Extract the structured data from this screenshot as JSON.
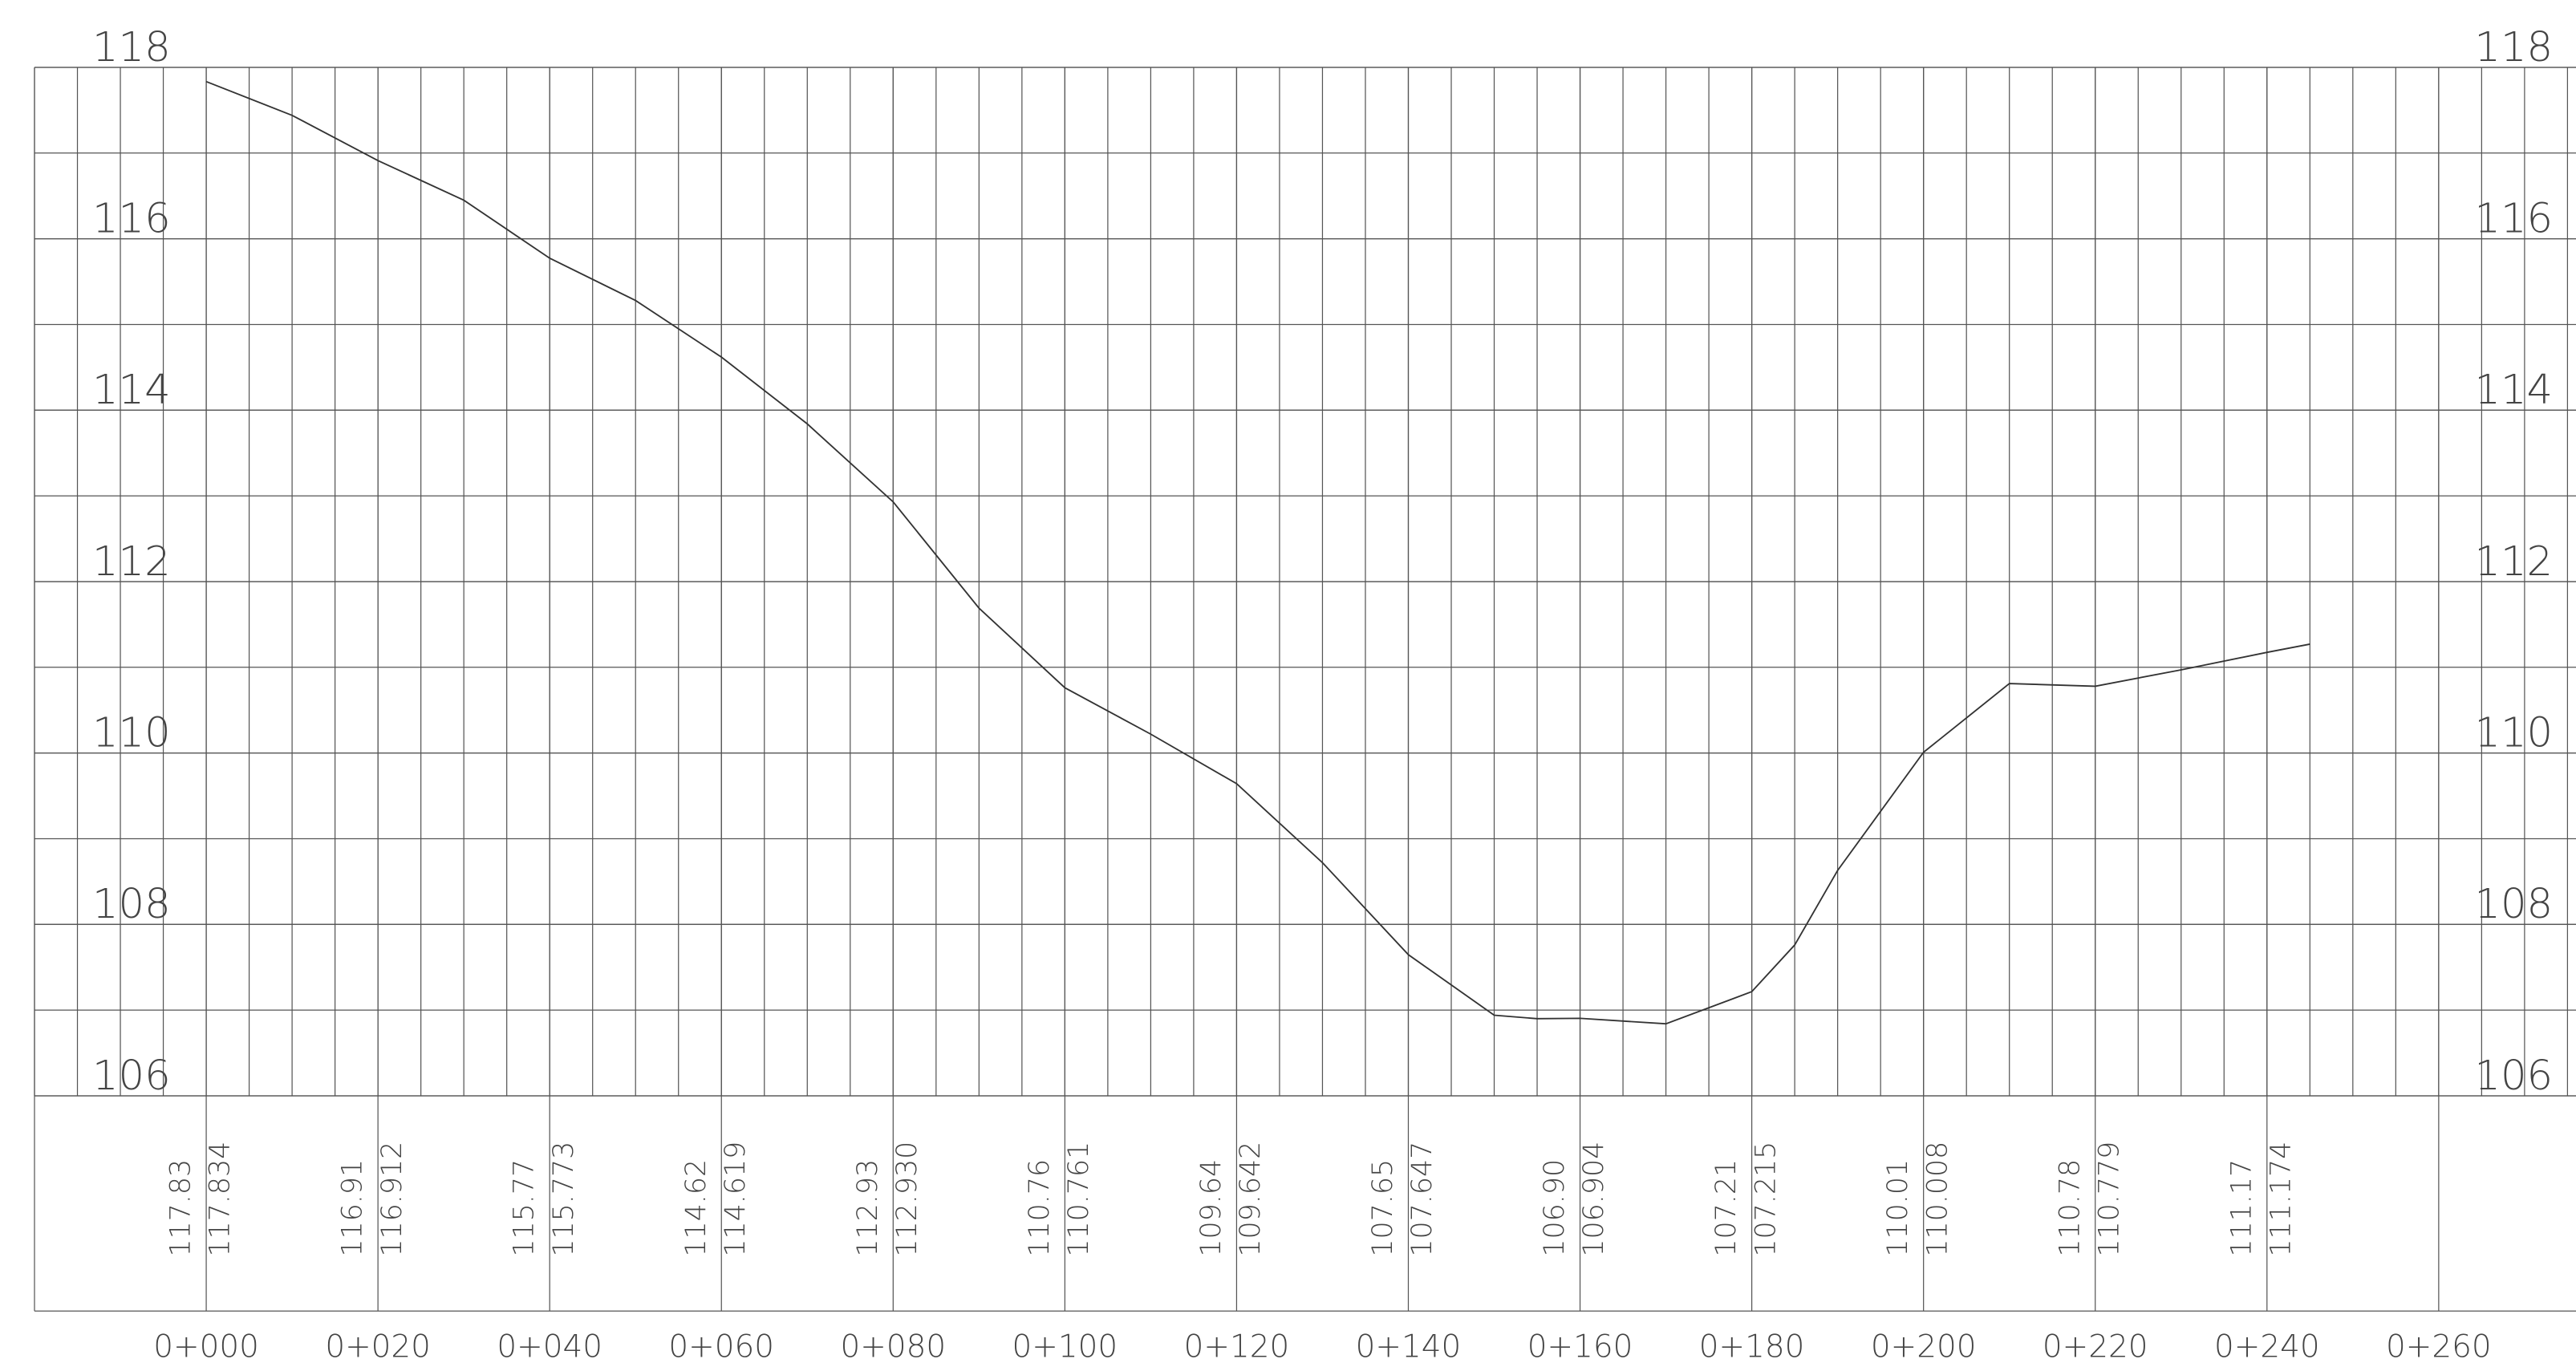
{
  "chart_data": {
    "type": "line",
    "x": [
      0,
      10,
      20,
      30,
      40,
      50,
      60,
      70,
      80,
      90,
      100,
      110,
      120,
      130,
      140,
      150,
      155,
      160,
      170,
      180,
      185,
      190,
      200,
      210,
      220,
      230,
      240,
      245
    ],
    "series": [
      {
        "color": "#333333",
        "values": [
          117.834,
          117.44,
          116.912,
          116.45,
          115.773,
          115.28,
          114.619,
          113.84,
          112.93,
          111.69,
          110.761,
          110.22,
          109.642,
          108.72,
          107.647,
          106.94,
          106.9,
          106.904,
          106.84,
          107.215,
          107.76,
          108.63,
          110.008,
          110.81,
          110.779,
          110.97,
          111.174,
          111.27
        ]
      }
    ],
    "xlim": [
      -20,
      276
    ],
    "ylim": [
      106,
      118
    ],
    "xticks": [
      {
        "value": 0,
        "label": "0+000"
      },
      {
        "value": 20,
        "label": "0+020"
      },
      {
        "value": 40,
        "label": "0+040"
      },
      {
        "value": 60,
        "label": "0+060"
      },
      {
        "value": 80,
        "label": "0+080"
      },
      {
        "value": 100,
        "label": "0+100"
      },
      {
        "value": 120,
        "label": "0+120"
      },
      {
        "value": 140,
        "label": "0+140"
      },
      {
        "value": 160,
        "label": "0+160"
      },
      {
        "value": 180,
        "label": "0+180"
      },
      {
        "value": 200,
        "label": "0+200"
      },
      {
        "value": 220,
        "label": "0+220"
      },
      {
        "value": 240,
        "label": "0+240"
      },
      {
        "value": 260,
        "label": "0+260"
      }
    ],
    "yticks": [
      106,
      108,
      110,
      112,
      114,
      116,
      118
    ],
    "grid": true,
    "table": {
      "x": [
        0,
        20,
        40,
        60,
        80,
        100,
        120,
        140,
        160,
        180,
        200,
        220,
        240
      ],
      "rows": [
        [
          "117.83",
          "116.91",
          "115.77",
          "114.62",
          "112.93",
          "110.76",
          "109.64",
          "107.65",
          "106.90",
          "107.21",
          "110.01",
          "110.78",
          "111.17"
        ],
        [
          "117.834",
          "116.912",
          "115.773",
          "114.619",
          "112.930",
          "110.761",
          "109.642",
          "107.647",
          "106.904",
          "107.215",
          "110.008",
          "110.779",
          "111.174"
        ]
      ]
    }
  }
}
